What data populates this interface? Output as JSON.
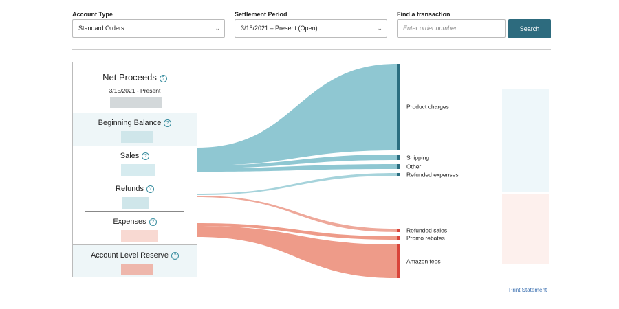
{
  "filters": {
    "account_type": {
      "label": "Account Type",
      "value": "Standard Orders"
    },
    "settlement_period": {
      "label": "Settlement Period",
      "value": "3/15/2021 – Present (Open)"
    },
    "find": {
      "label": "Find a transaction",
      "placeholder": "Enter order number",
      "button": "Search"
    }
  },
  "summary": {
    "title": "Net Proceeds",
    "period": "3/15/2021 - Present",
    "sections": [
      "Beginning Balance",
      "Sales",
      "Refunds",
      "Expenses",
      "Account Level Reserve"
    ]
  },
  "sankey": {
    "targets": [
      "Product charges",
      "Shipping",
      "Other",
      "Refunded expenses",
      "Refunded sales",
      "Promo rebates",
      "Amazon fees"
    ]
  },
  "footer": {
    "link": "Print Statement"
  }
}
